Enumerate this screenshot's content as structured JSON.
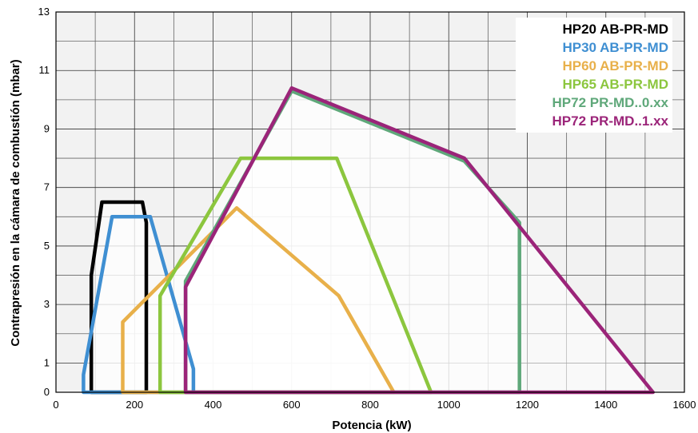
{
  "chart_data": {
    "type": "area",
    "title": "",
    "xlabel": "Potencia (kW)",
    "ylabel": "Contrapresión en la cámara de combustión (mbar)",
    "xlim": [
      0,
      1600
    ],
    "ylim": [
      0,
      13
    ],
    "xticks": [
      0,
      200,
      400,
      600,
      800,
      1000,
      1200,
      1400,
      1600
    ],
    "yticks": [
      0,
      1,
      3,
      5,
      7,
      9,
      11,
      13
    ],
    "grid": true,
    "legend_position": "top-right",
    "series": [
      {
        "name": "HP20 AB-PR-MD",
        "color": "#000000",
        "points": [
          [
            90,
            0
          ],
          [
            90,
            4.0
          ],
          [
            117,
            6.5
          ],
          [
            220,
            6.5
          ],
          [
            230,
            5.8
          ],
          [
            230,
            0
          ]
        ]
      },
      {
        "name": "HP30 AB-PR-MD",
        "color": "#3f8fd2",
        "points": [
          [
            70,
            0
          ],
          [
            70,
            0.6
          ],
          [
            143,
            6.0
          ],
          [
            240,
            6.0
          ],
          [
            350,
            0.8
          ],
          [
            350,
            0
          ]
        ]
      },
      {
        "name": "HP60 AB-PR-MD",
        "color": "#e8b04a",
        "points": [
          [
            170,
            0
          ],
          [
            170,
            2.4
          ],
          [
            460,
            6.3
          ],
          [
            720,
            3.3
          ],
          [
            860,
            0
          ]
        ]
      },
      {
        "name": "HP65 AB-PR-MD",
        "color": "#8cc63e",
        "points": [
          [
            265,
            0
          ],
          [
            265,
            3.3
          ],
          [
            470,
            8.0
          ],
          [
            715,
            8.0
          ],
          [
            955,
            0
          ]
        ]
      },
      {
        "name": "HP72 PR-MD..0.xx",
        "color": "#5fa87a",
        "points": [
          [
            330,
            0
          ],
          [
            330,
            3.8
          ],
          [
            600,
            10.3
          ],
          [
            1040,
            7.9
          ],
          [
            1180,
            5.8
          ],
          [
            1180,
            0
          ]
        ]
      },
      {
        "name": "HP72 PR-MD..1.xx",
        "color": "#9b2479",
        "points": [
          [
            330,
            0
          ],
          [
            330,
            3.6
          ],
          [
            600,
            10.4
          ],
          [
            1040,
            8.0
          ],
          [
            1520,
            0
          ]
        ]
      }
    ]
  }
}
